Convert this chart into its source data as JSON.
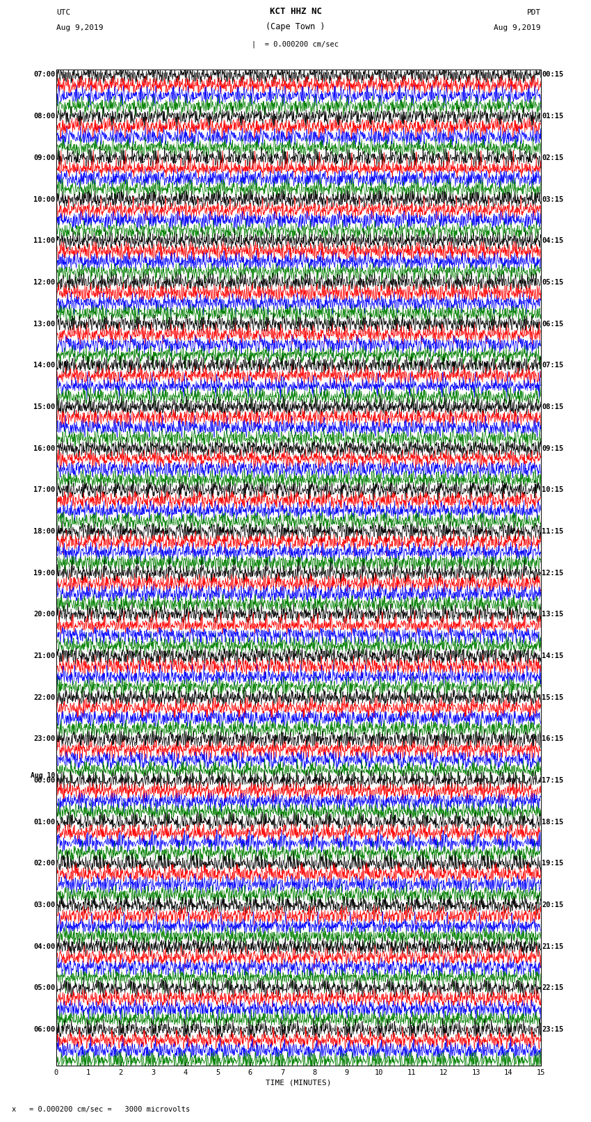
{
  "title_station": "KCT HHZ NC",
  "title_location": "(Cape Town )",
  "label_utc": "UTC",
  "label_pdt": "PDT",
  "date_left": "Aug 9,2019",
  "date_right": "Aug 9,2019",
  "scale_header": "|  = 0.000200 cm/sec",
  "scale_footer": "x   = 0.000200 cm/sec =   3000 microvolts",
  "xlabel": "TIME (MINUTES)",
  "xlim": [
    0,
    15
  ],
  "xticks": [
    0,
    1,
    2,
    3,
    4,
    5,
    6,
    7,
    8,
    9,
    10,
    11,
    12,
    13,
    14,
    15
  ],
  "trace_colors": [
    "black",
    "red",
    "blue",
    "green"
  ],
  "bg_color": "white",
  "fig_width": 8.5,
  "fig_height": 16.13,
  "dpi": 100,
  "num_hour_groups": 24,
  "traces_per_group": 4,
  "left_labels": [
    "07:00",
    "08:00",
    "09:00",
    "10:00",
    "11:00",
    "12:00",
    "13:00",
    "14:00",
    "15:00",
    "16:00",
    "17:00",
    "18:00",
    "19:00",
    "20:00",
    "21:00",
    "22:00",
    "23:00",
    "00:00",
    "01:00",
    "02:00",
    "03:00",
    "04:00",
    "05:00",
    "06:00"
  ],
  "right_labels": [
    "00:15",
    "01:15",
    "02:15",
    "03:15",
    "04:15",
    "05:15",
    "06:15",
    "07:15",
    "08:15",
    "09:15",
    "10:15",
    "11:15",
    "12:15",
    "13:15",
    "14:15",
    "15:15",
    "16:15",
    "17:15",
    "18:15",
    "19:15",
    "20:15",
    "21:15",
    "22:15",
    "23:15"
  ],
  "aug10_after_group": 16,
  "vgrid_color": "#aaaaaa",
  "vgrid_lw": 0.4,
  "trace_lw": 0.5,
  "trace_amp": 0.38,
  "label_fontsize": 7.5,
  "title_fontsize": 9,
  "header_fontsize": 8
}
